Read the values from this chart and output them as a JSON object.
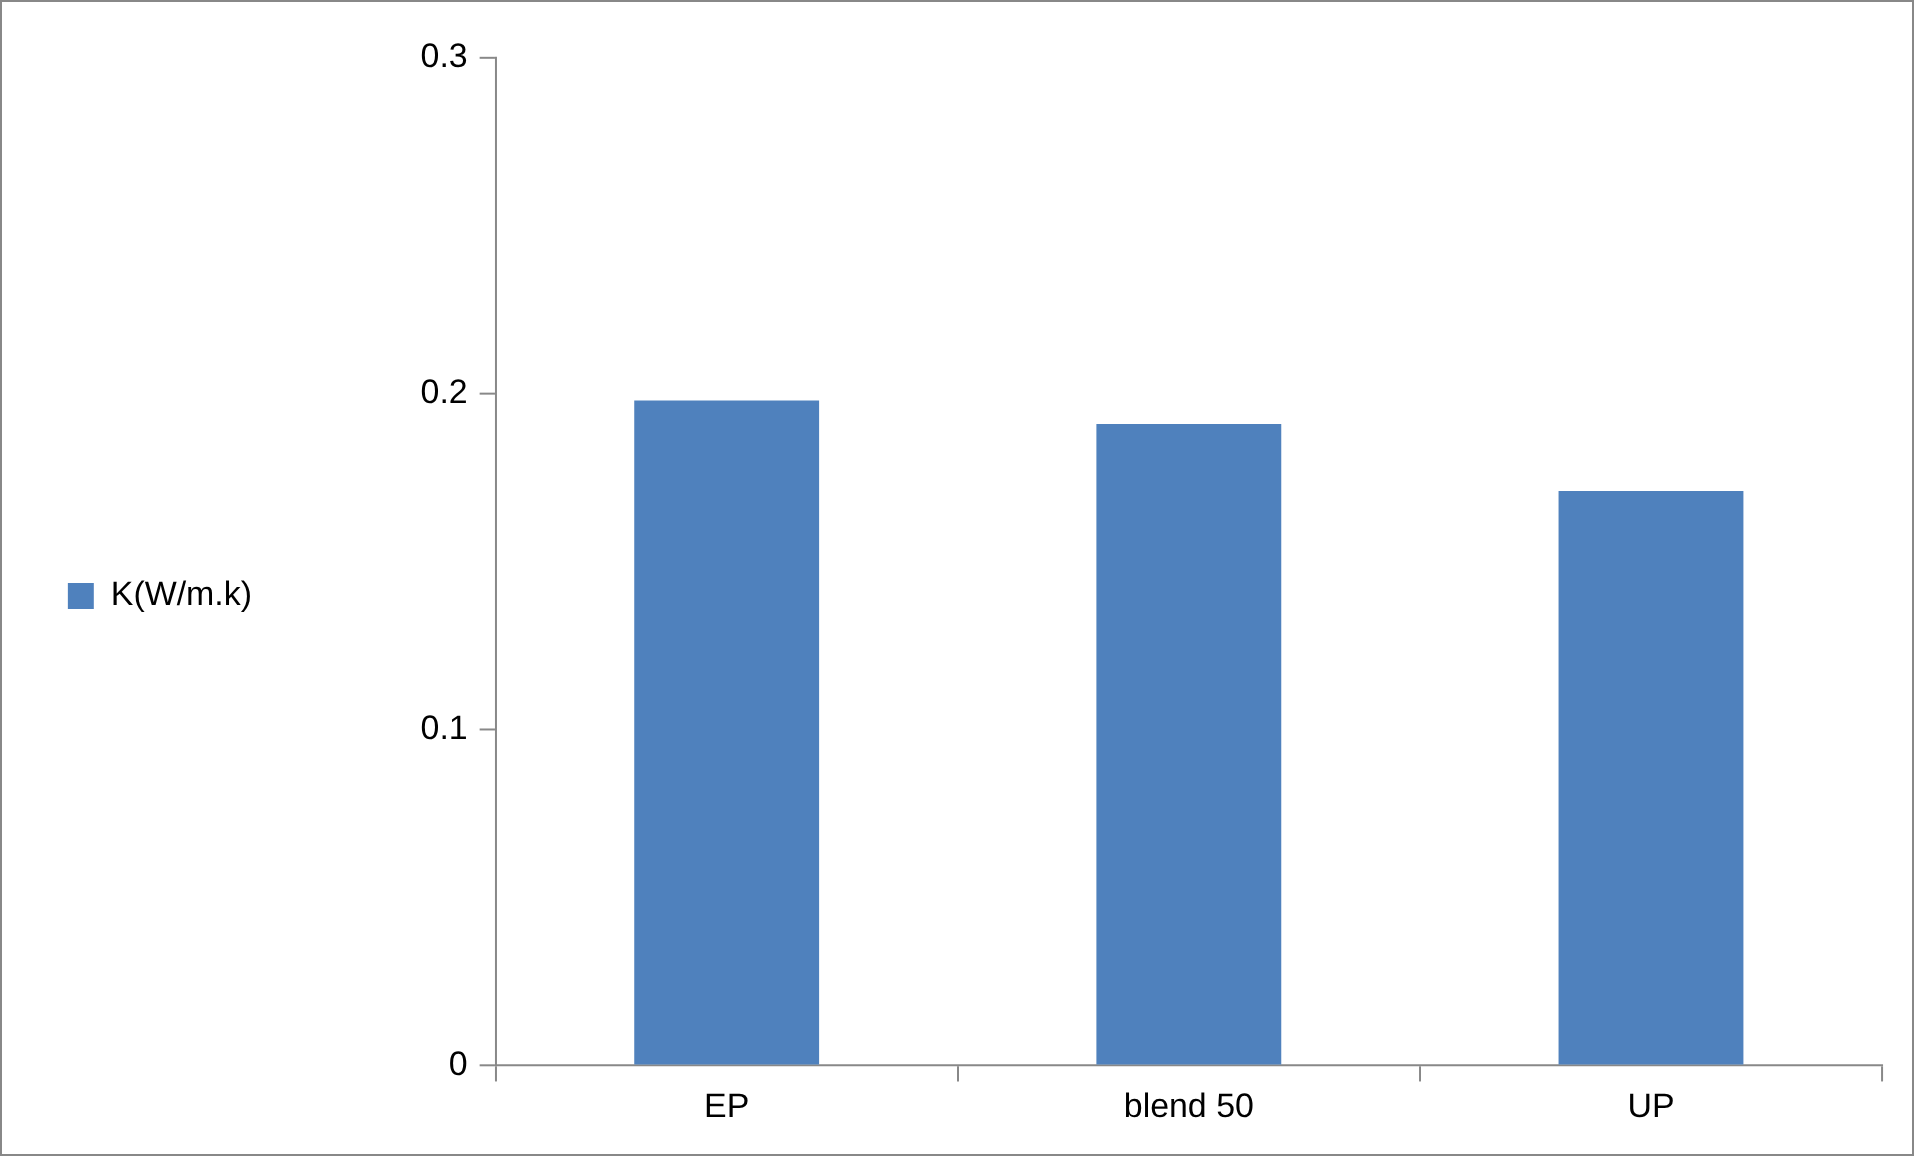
{
  "chart_data": {
    "type": "bar",
    "categories": [
      "EP",
      "blend 50",
      "UP"
    ],
    "series": [
      {
        "name": "K(W/m.k)",
        "color": "#4f81bd",
        "values": [
          0.198,
          0.191,
          0.171
        ]
      }
    ],
    "ylim": [
      0,
      0.3
    ],
    "yticks": [
      0,
      0.1,
      0.2,
      0.3
    ],
    "legend": "left"
  }
}
